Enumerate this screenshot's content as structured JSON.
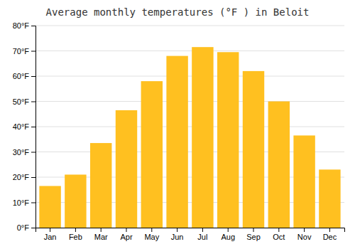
{
  "chart_data": {
    "type": "bar",
    "title": "Average monthly temperatures (°F ) in Beloit",
    "categories": [
      "Jan",
      "Feb",
      "Mar",
      "Apr",
      "May",
      "Jun",
      "Jul",
      "Aug",
      "Sep",
      "Oct",
      "Nov",
      "Dec"
    ],
    "values": [
      16.5,
      21.0,
      33.5,
      46.5,
      58.0,
      68.0,
      71.5,
      69.5,
      62.0,
      50.0,
      36.5,
      23.0
    ],
    "color": "#FFC020",
    "ylim": [
      0,
      80
    ],
    "yticks": [
      {
        "value": 0,
        "label": "0°F"
      },
      {
        "value": 10,
        "label": "10°F"
      },
      {
        "value": 20,
        "label": "20°F"
      },
      {
        "value": 30,
        "label": "30°F"
      },
      {
        "value": 40,
        "label": "40°F"
      },
      {
        "value": 50,
        "label": "50°F"
      },
      {
        "value": 60,
        "label": "60°F"
      },
      {
        "value": 70,
        "label": "70°F"
      },
      {
        "value": 80,
        "label": "80°F"
      }
    ],
    "grid": true
  }
}
